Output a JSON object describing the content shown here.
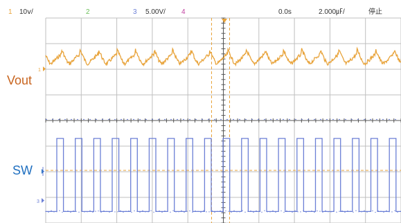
{
  "header": {
    "ch1_num": "1",
    "ch1_scale": "10ⅴ/",
    "ch2_num": "2",
    "ch3_num": "3",
    "ch3_scale": "5.00V/",
    "ch4_num": "4",
    "timebase_pos": "0.0s",
    "timebase_scale": "2.000㎌/",
    "run_state": "停止"
  },
  "labels": {
    "vout": "Vout",
    "sw": "SW",
    "ch1_marker": "1",
    "ch3_marker": "3"
  },
  "colors": {
    "ch1": "#E8A33A",
    "ch2": "#6BBF59",
    "ch3": "#6B7FD6",
    "ch4": "#C040A0",
    "vout_label": "#C8641E",
    "sw_label": "#1F6FC0",
    "grid": "#BFBFBF",
    "trigger": "#E8A33A"
  },
  "chart_data": {
    "type": "line",
    "title": "",
    "grid": true,
    "divisions": {
      "x": 10,
      "y": 8
    },
    "x_unit": "division",
    "xlim": [
      -5,
      5
    ],
    "series": [
      {
        "name": "Vout",
        "channel": 1,
        "waveform": "periodic ripple dips",
        "period_div": 0.52,
        "baseline_div": 2.6,
        "dip_depth_div": 0.38
      },
      {
        "name": "SW",
        "channel": 3,
        "waveform": "square",
        "period_div": 0.52,
        "duty": 0.36,
        "high_div": -0.7,
        "low_div": -3.55
      }
    ],
    "trigger_cursor_x": 0
  }
}
